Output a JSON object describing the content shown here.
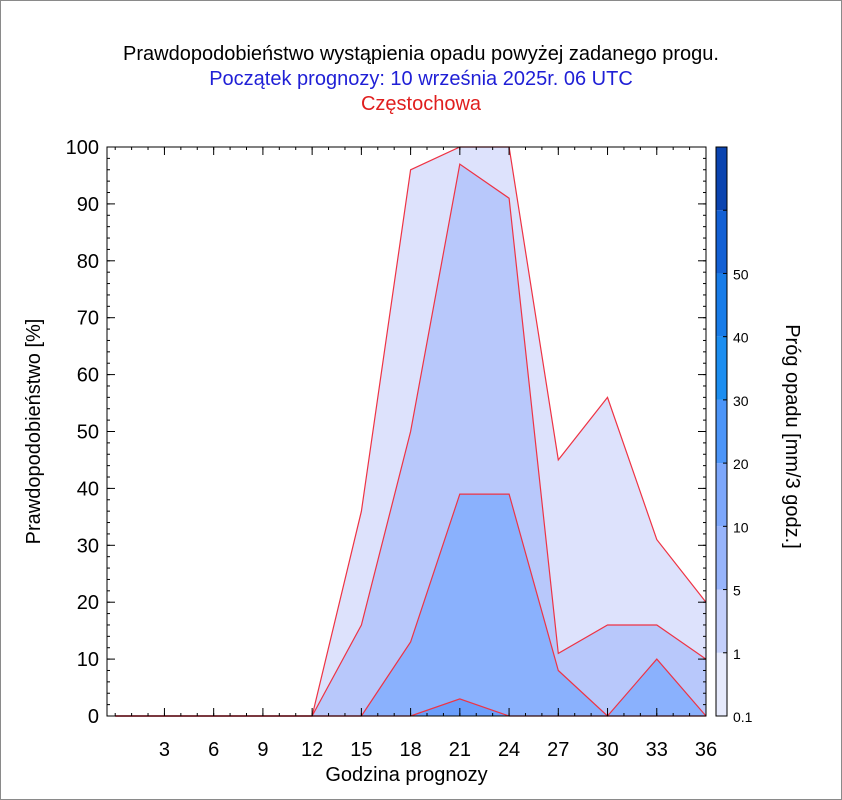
{
  "titles": {
    "line1": "Prawdopodobieństwo wystąpienia opadu powyżej zadanego progu.",
    "line2": "Początek prognozy: 10 września 2025r. 06 UTC",
    "line3": "Częstochowa"
  },
  "colors": {
    "title": "#000000",
    "subtitle": "#1f1fd6",
    "location": "#e01e1e",
    "outline": "#ee3344"
  },
  "chart_data": {
    "type": "area",
    "xlabel": "Godzina prognozy",
    "ylabel": "Prawdopodobieństwo [%]",
    "xlim": [
      -0.5,
      36
    ],
    "ylim": [
      0,
      100
    ],
    "x_ticks": [
      3,
      6,
      9,
      12,
      15,
      18,
      21,
      24,
      27,
      30,
      33,
      36
    ],
    "y_ticks": [
      0,
      10,
      20,
      30,
      40,
      50,
      60,
      70,
      80,
      90,
      100
    ],
    "x": [
      0,
      3,
      6,
      9,
      12,
      15,
      18,
      21,
      24,
      27,
      30,
      33,
      36
    ],
    "series": [
      {
        "threshold": "0.1",
        "color": "#dde2fc",
        "values": [
          0,
          0,
          0,
          0,
          0,
          36,
          96,
          100,
          100,
          45,
          56,
          31,
          20
        ]
      },
      {
        "threshold": "1",
        "color": "#b8c8fb",
        "values": [
          0,
          0,
          0,
          0,
          0,
          16,
          50,
          97,
          91,
          11,
          16,
          16,
          10
        ]
      },
      {
        "threshold": "5",
        "color": "#8ab1fd",
        "values": [
          0,
          0,
          0,
          0,
          0,
          0,
          13,
          39,
          39,
          8,
          0,
          10,
          0
        ]
      },
      {
        "threshold": "10",
        "color": "#6a9efb",
        "values": [
          0,
          0,
          0,
          0,
          0,
          0,
          0,
          3,
          0,
          0,
          0,
          0,
          0
        ]
      }
    ],
    "colorbar": {
      "label": "Próg opadu [mm/3 godz.]",
      "levels": [
        {
          "label": "0.1",
          "color": "#e6eafc"
        },
        {
          "label": "1",
          "color": "#c3cffb"
        },
        {
          "label": "5",
          "color": "#97b4fb"
        },
        {
          "label": "10",
          "color": "#7da7fb"
        },
        {
          "label": "20",
          "color": "#4c95f8"
        },
        {
          "label": "30",
          "color": "#1c8ef0"
        },
        {
          "label": "40",
          "color": "#187ce8"
        },
        {
          "label": "50",
          "color": "#1360d4"
        },
        {
          "label": "",
          "color": "#0b44b0"
        }
      ]
    }
  }
}
